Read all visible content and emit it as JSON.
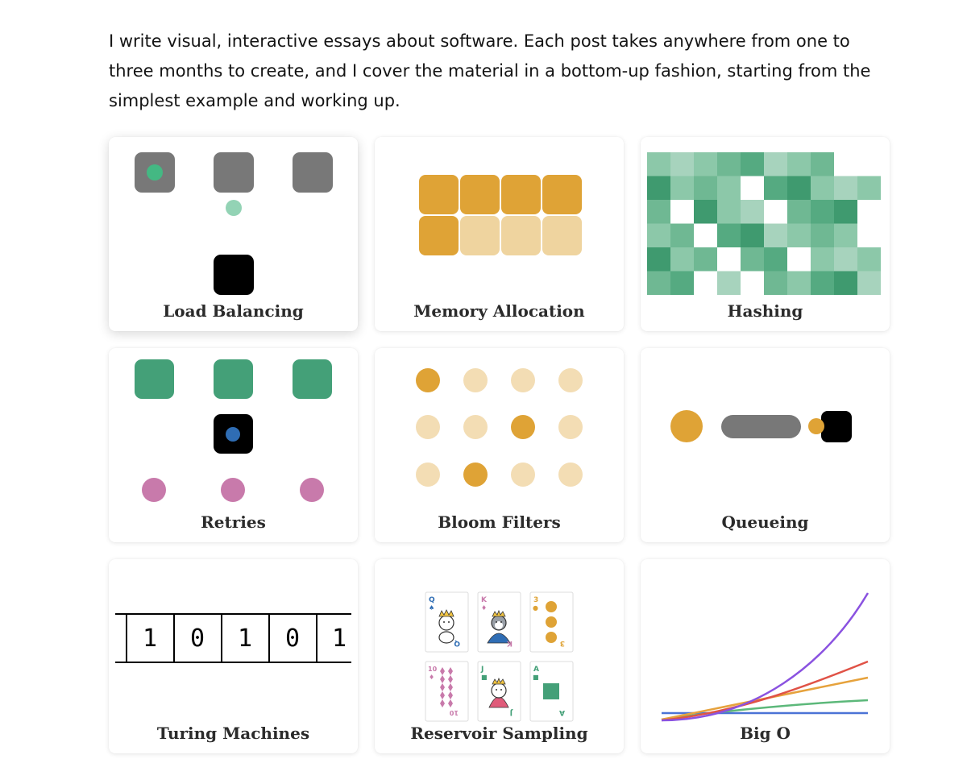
{
  "intro": {
    "text": "I write visual, interactive essays about software. Each post takes anywhere from one to three months to create, and I cover the material in a bottom-up fashion, starting from the simplest example and working up."
  },
  "colors": {
    "gray": "#787878",
    "green": "#44a078",
    "light_green": "#93d3b5",
    "gold": "#dfa336",
    "light_gold": "#f1dcb0",
    "pink": "#c87aab",
    "blue": "#2f6db4",
    "purple": "#8a52e0",
    "red": "#e05246",
    "orange": "#e6a23c",
    "line_green": "#5cb87a",
    "line_blue": "#4b73d6"
  },
  "posts": [
    {
      "title": "Load Balancing",
      "icon": "load-balancing-illustration"
    },
    {
      "title": "Memory Allocation",
      "icon": "memory-allocation-illustration"
    },
    {
      "title": "Hashing",
      "icon": "hashing-illustration"
    },
    {
      "title": "Retries",
      "icon": "retries-illustration"
    },
    {
      "title": "Bloom Filters",
      "icon": "bloom-filters-illustration"
    },
    {
      "title": "Queueing",
      "icon": "queueing-illustration"
    },
    {
      "title": "Turing Machines",
      "icon": "turing-machines-illustration"
    },
    {
      "title": "Reservoir Sampling",
      "icon": "reservoir-sampling-illustration"
    },
    {
      "title": "Big O",
      "icon": "big-o-illustration"
    }
  ],
  "turing": {
    "tape": [
      "1",
      "0",
      "1",
      "0",
      "1"
    ]
  },
  "cards": {
    "top": [
      {
        "rank": "Q",
        "suit": "♠",
        "color": "#2f6db4"
      },
      {
        "rank": "K",
        "suit": "♦",
        "color": "#c87aab"
      },
      {
        "rank": "3",
        "suit": "●",
        "color": "#dfa336"
      }
    ],
    "bottom": [
      {
        "rank": "10",
        "suit": "♦",
        "color": "#c87aab"
      },
      {
        "rank": "J",
        "suit": "■",
        "color": "#44a078"
      },
      {
        "rank": "A",
        "suit": "■",
        "color": "#44a078"
      }
    ]
  }
}
